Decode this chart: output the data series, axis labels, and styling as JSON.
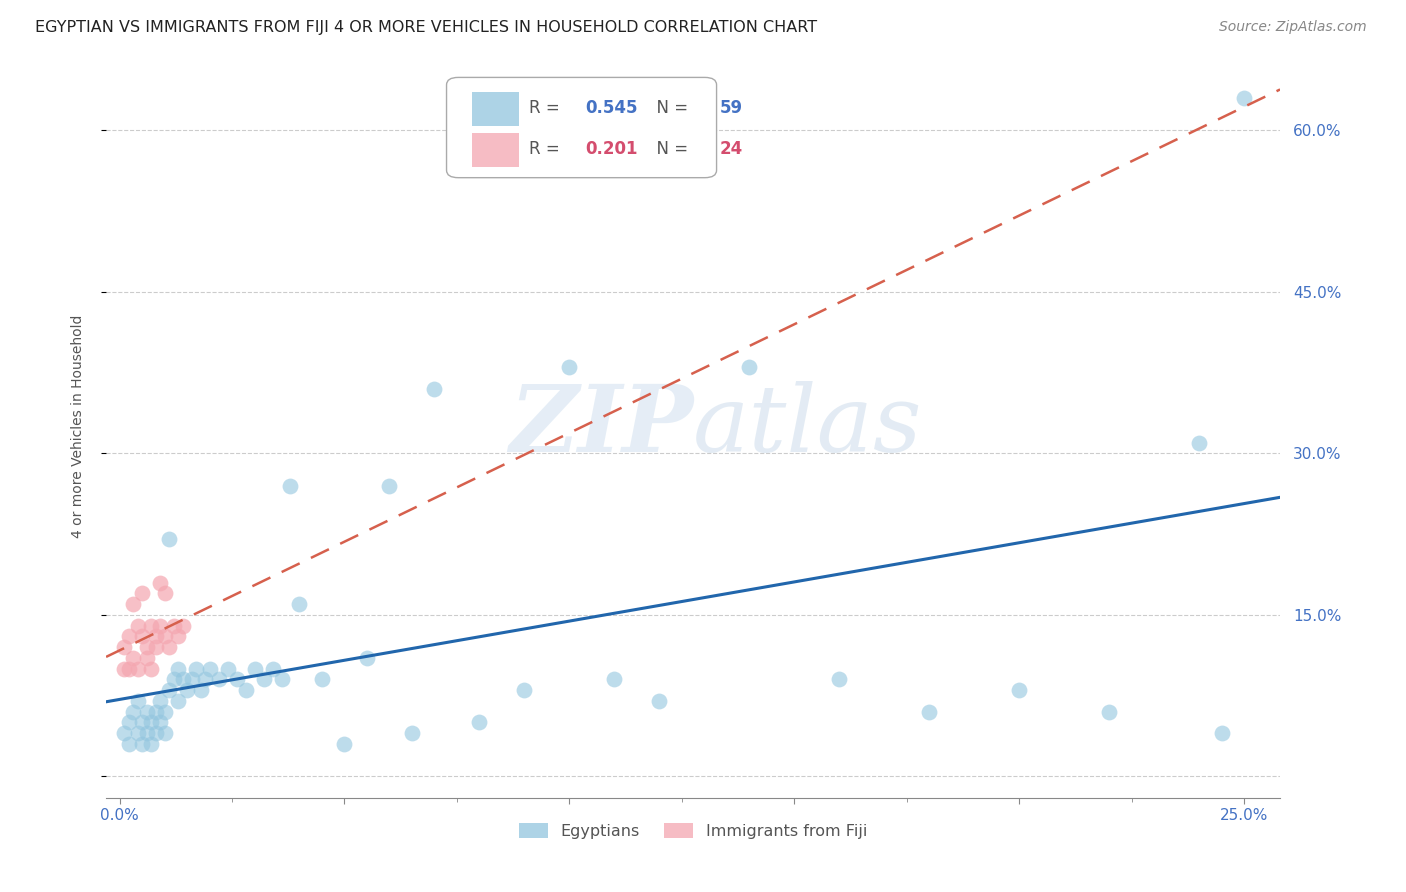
{
  "title": "EGYPTIAN VS IMMIGRANTS FROM FIJI 4 OR MORE VEHICLES IN HOUSEHOLD CORRELATION CHART",
  "source": "Source: ZipAtlas.com",
  "ylabel": "4 or more Vehicles in Household",
  "watermark_zip": "ZIP",
  "watermark_atlas": "atlas",
  "egyptians_R": 0.545,
  "egyptians_N": 59,
  "fiji_R": 0.201,
  "fiji_N": 24,
  "egyptians_color": "#92c5de",
  "fiji_color": "#f4a6b0",
  "egyptians_line_color": "#2166ac",
  "fiji_line_color": "#d6604d",
  "egyptians_x": [
    0.001,
    0.002,
    0.002,
    0.003,
    0.004,
    0.004,
    0.005,
    0.005,
    0.006,
    0.006,
    0.007,
    0.007,
    0.008,
    0.008,
    0.009,
    0.009,
    0.01,
    0.01,
    0.011,
    0.011,
    0.012,
    0.013,
    0.013,
    0.014,
    0.015,
    0.016,
    0.017,
    0.018,
    0.019,
    0.02,
    0.022,
    0.024,
    0.026,
    0.028,
    0.03,
    0.032,
    0.034,
    0.036,
    0.038,
    0.04,
    0.045,
    0.05,
    0.055,
    0.06,
    0.065,
    0.07,
    0.08,
    0.09,
    0.1,
    0.11,
    0.12,
    0.14,
    0.16,
    0.18,
    0.2,
    0.22,
    0.24,
    0.245,
    0.25
  ],
  "egyptians_y": [
    0.04,
    0.05,
    0.03,
    0.06,
    0.04,
    0.07,
    0.05,
    0.03,
    0.06,
    0.04,
    0.05,
    0.03,
    0.06,
    0.04,
    0.07,
    0.05,
    0.06,
    0.04,
    0.22,
    0.08,
    0.09,
    0.1,
    0.07,
    0.09,
    0.08,
    0.09,
    0.1,
    0.08,
    0.09,
    0.1,
    0.09,
    0.1,
    0.09,
    0.08,
    0.1,
    0.09,
    0.1,
    0.09,
    0.27,
    0.16,
    0.09,
    0.03,
    0.11,
    0.27,
    0.04,
    0.36,
    0.05,
    0.08,
    0.38,
    0.09,
    0.07,
    0.38,
    0.09,
    0.06,
    0.08,
    0.06,
    0.31,
    0.04,
    0.63
  ],
  "fiji_x": [
    0.001,
    0.001,
    0.002,
    0.002,
    0.003,
    0.003,
    0.004,
    0.004,
    0.005,
    0.005,
    0.006,
    0.006,
    0.007,
    0.007,
    0.008,
    0.008,
    0.009,
    0.009,
    0.01,
    0.01,
    0.011,
    0.012,
    0.013,
    0.014
  ],
  "fiji_y": [
    0.1,
    0.12,
    0.13,
    0.1,
    0.16,
    0.11,
    0.14,
    0.1,
    0.17,
    0.13,
    0.12,
    0.11,
    0.14,
    0.1,
    0.13,
    0.12,
    0.18,
    0.14,
    0.13,
    0.17,
    0.12,
    0.14,
    0.13,
    0.14
  ],
  "legend_label_egyptians": "Egyptians",
  "legend_label_fiji": "Immigrants from Fiji",
  "xlim": [
    -0.003,
    0.258
  ],
  "ylim": [
    -0.02,
    0.67
  ],
  "y_ticks": [
    0.0,
    0.15,
    0.3,
    0.45,
    0.6
  ],
  "y_tick_labels": [
    "",
    "15.0%",
    "30.0%",
    "45.0%",
    "60.0%"
  ],
  "x_ticks": [
    0.0,
    0.05,
    0.1,
    0.15,
    0.2,
    0.25
  ],
  "x_tick_labels": [
    "0.0%",
    "",
    "",
    "",
    "",
    "25.0%"
  ],
  "title_fontsize": 11.5,
  "axis_label_fontsize": 10,
  "tick_fontsize": 11,
  "source_fontsize": 10
}
